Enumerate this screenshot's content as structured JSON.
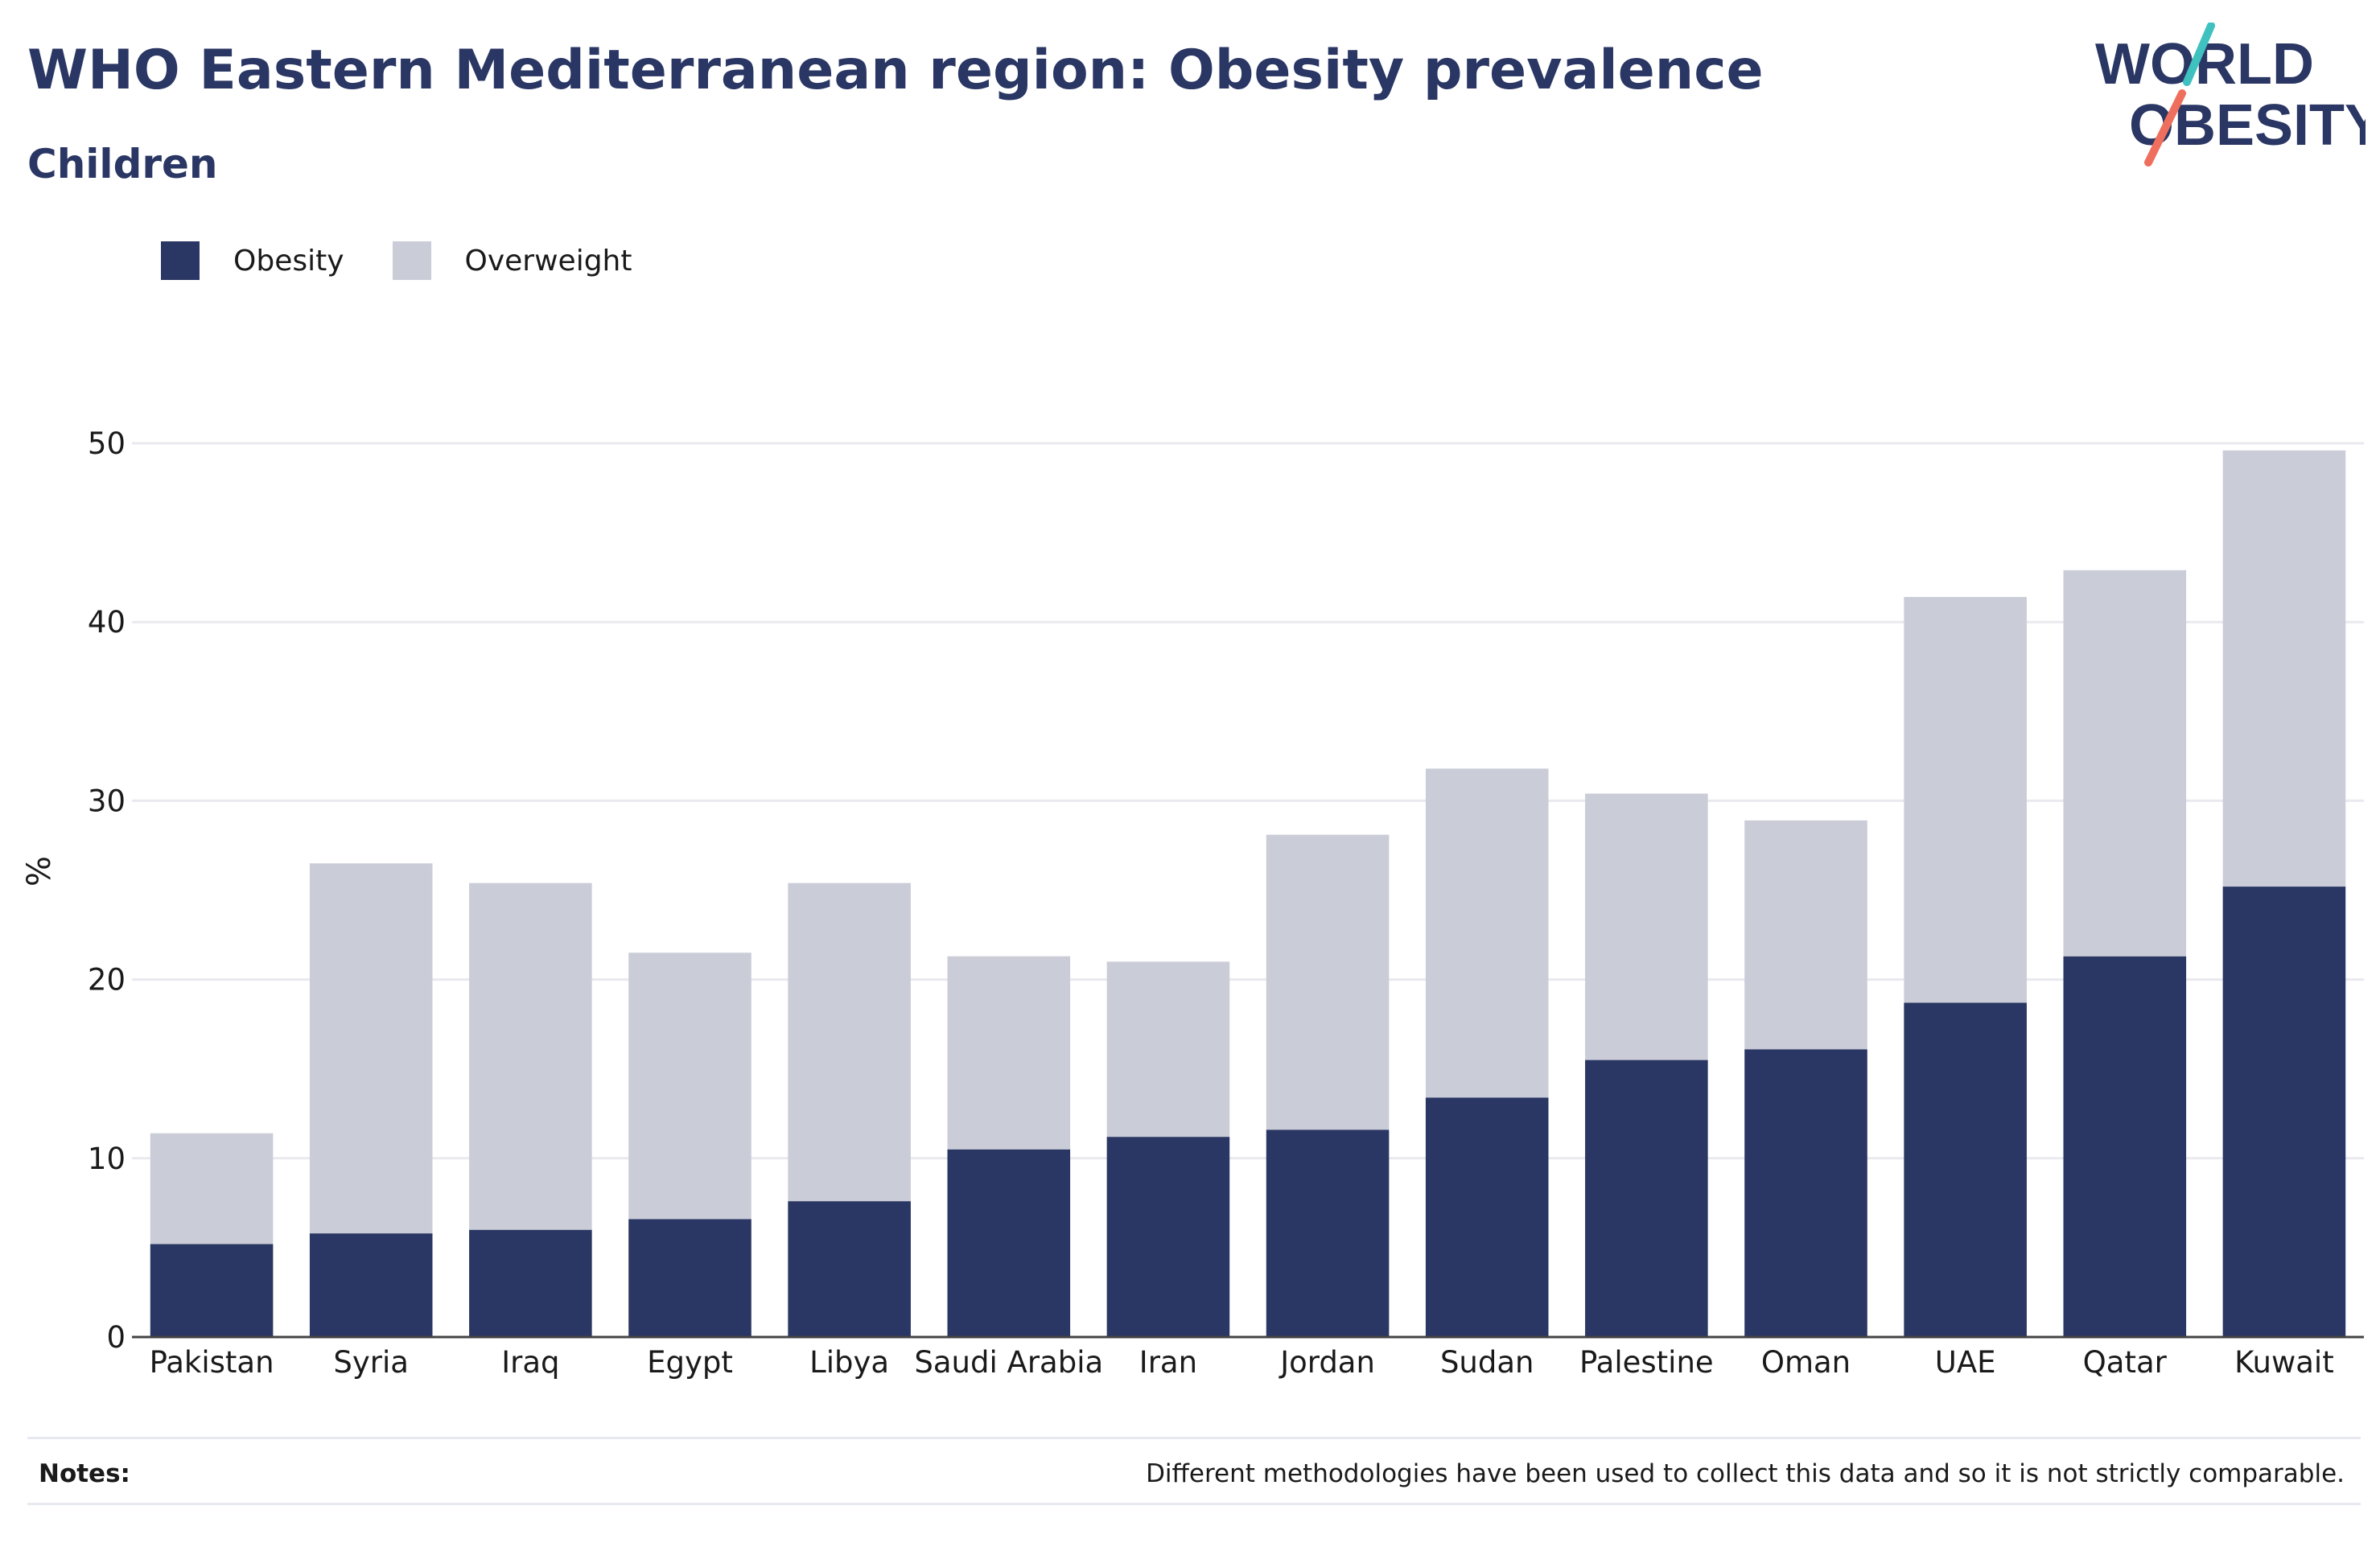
{
  "header": {
    "title": "WHO Eastern Mediterranean region: Obesity prevalence",
    "subtitle": "Children"
  },
  "logo": {
    "line1": "WORLD",
    "line2": "OBESITY",
    "colors": {
      "text": "#2a3663",
      "slash_top": "#3fc1c0",
      "slash_bottom": "#ef6f5e"
    }
  },
  "chart_data": {
    "type": "bar",
    "stacked": true,
    "title": "WHO Eastern Mediterranean region: Obesity prevalence",
    "subtitle": "Children",
    "xlabel": "",
    "ylabel": "%",
    "ylim": [
      0,
      50
    ],
    "yticks": [
      0,
      10,
      20,
      30,
      40,
      50
    ],
    "grid": true,
    "legend_position": "top-left",
    "categories": [
      "Pakistan",
      "Syria",
      "Iraq",
      "Egypt",
      "Libya",
      "Saudi Arabia",
      "Iran",
      "Jordan",
      "Sudan",
      "Palestine",
      "Oman",
      "UAE",
      "Qatar",
      "Kuwait"
    ],
    "series": [
      {
        "name": "Obesity",
        "color": "#2a3663",
        "values": [
          5.2,
          5.8,
          6.0,
          6.6,
          7.6,
          10.5,
          11.2,
          11.6,
          13.4,
          15.5,
          16.1,
          18.7,
          21.3,
          25.2
        ]
      },
      {
        "name": "Overweight",
        "color": "#cacdd8",
        "values": [
          6.2,
          20.7,
          19.4,
          14.9,
          17.8,
          10.8,
          9.8,
          16.5,
          18.4,
          14.9,
          12.8,
          22.7,
          21.6,
          24.4
        ]
      }
    ]
  },
  "notes": {
    "label": "Notes:",
    "text": "Different methodologies have been used to collect this data and so it is not strictly comparable."
  }
}
